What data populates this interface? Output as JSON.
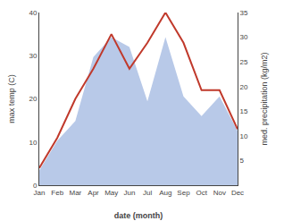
{
  "chart_data": {
    "type": "line",
    "xlabel": "date (month)",
    "ylabel": "max temp (C)",
    "y2label": "med. precipitation (kg/m2)",
    "categories": [
      "Jan",
      "Feb",
      "Mar",
      "Apr",
      "May",
      "Jun",
      "Jul",
      "Aug",
      "Sep",
      "Oct",
      "Nov",
      "Dec"
    ],
    "series": [
      {
        "type": "area",
        "axis": "y2",
        "color": "#b8c9e8",
        "values": [
          3,
          9,
          13,
          26,
          30,
          28,
          17,
          30,
          18,
          14,
          18,
          11
        ]
      },
      {
        "type": "line",
        "color": "#c0392b",
        "values": [
          4,
          11,
          20,
          27,
          35,
          27,
          33,
          40,
          33,
          22,
          22,
          13
        ]
      }
    ],
    "ylim": [
      0,
      40
    ],
    "yticks": [
      0,
      10,
      20,
      30,
      40
    ],
    "y2lim": [
      0,
      35
    ],
    "y2ticks": [
      5,
      10,
      15,
      20,
      25,
      30,
      35
    ],
    "grid": false
  }
}
